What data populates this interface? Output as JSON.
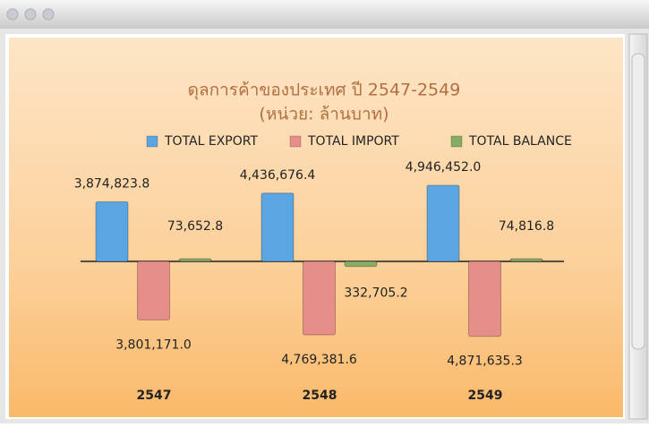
{
  "chart_data": {
    "type": "bar",
    "title": "ดุลการค้าของประเทศ ปี 2547-2549",
    "subtitle": "(หน่วย: ล้านบาท)",
    "categories": [
      "2547",
      "2548",
      "2549"
    ],
    "series": [
      {
        "name": "TOTAL EXPORT",
        "color": "#5aa6e2",
        "values": [
          3874823.8,
          4436676.4,
          4946452.0
        ],
        "value_labels": [
          "3,874,823.8",
          "4,436,676.4",
          "4,946,452.0"
        ]
      },
      {
        "name": "TOTAL IMPORT",
        "color": "#e58e8a",
        "values": [
          -3801171.0,
          -4769381.6,
          -4871635.3
        ],
        "value_labels": [
          "3,801,171.0",
          "4,769,381.6",
          "4,871,635.3"
        ]
      },
      {
        "name": "TOTAL BALANCE",
        "color": "#86ad63",
        "values": [
          73652.8,
          -332705.2,
          74816.8
        ],
        "value_labels": [
          "73,652.8",
          "332,705.2",
          "74,816.8"
        ]
      }
    ]
  }
}
